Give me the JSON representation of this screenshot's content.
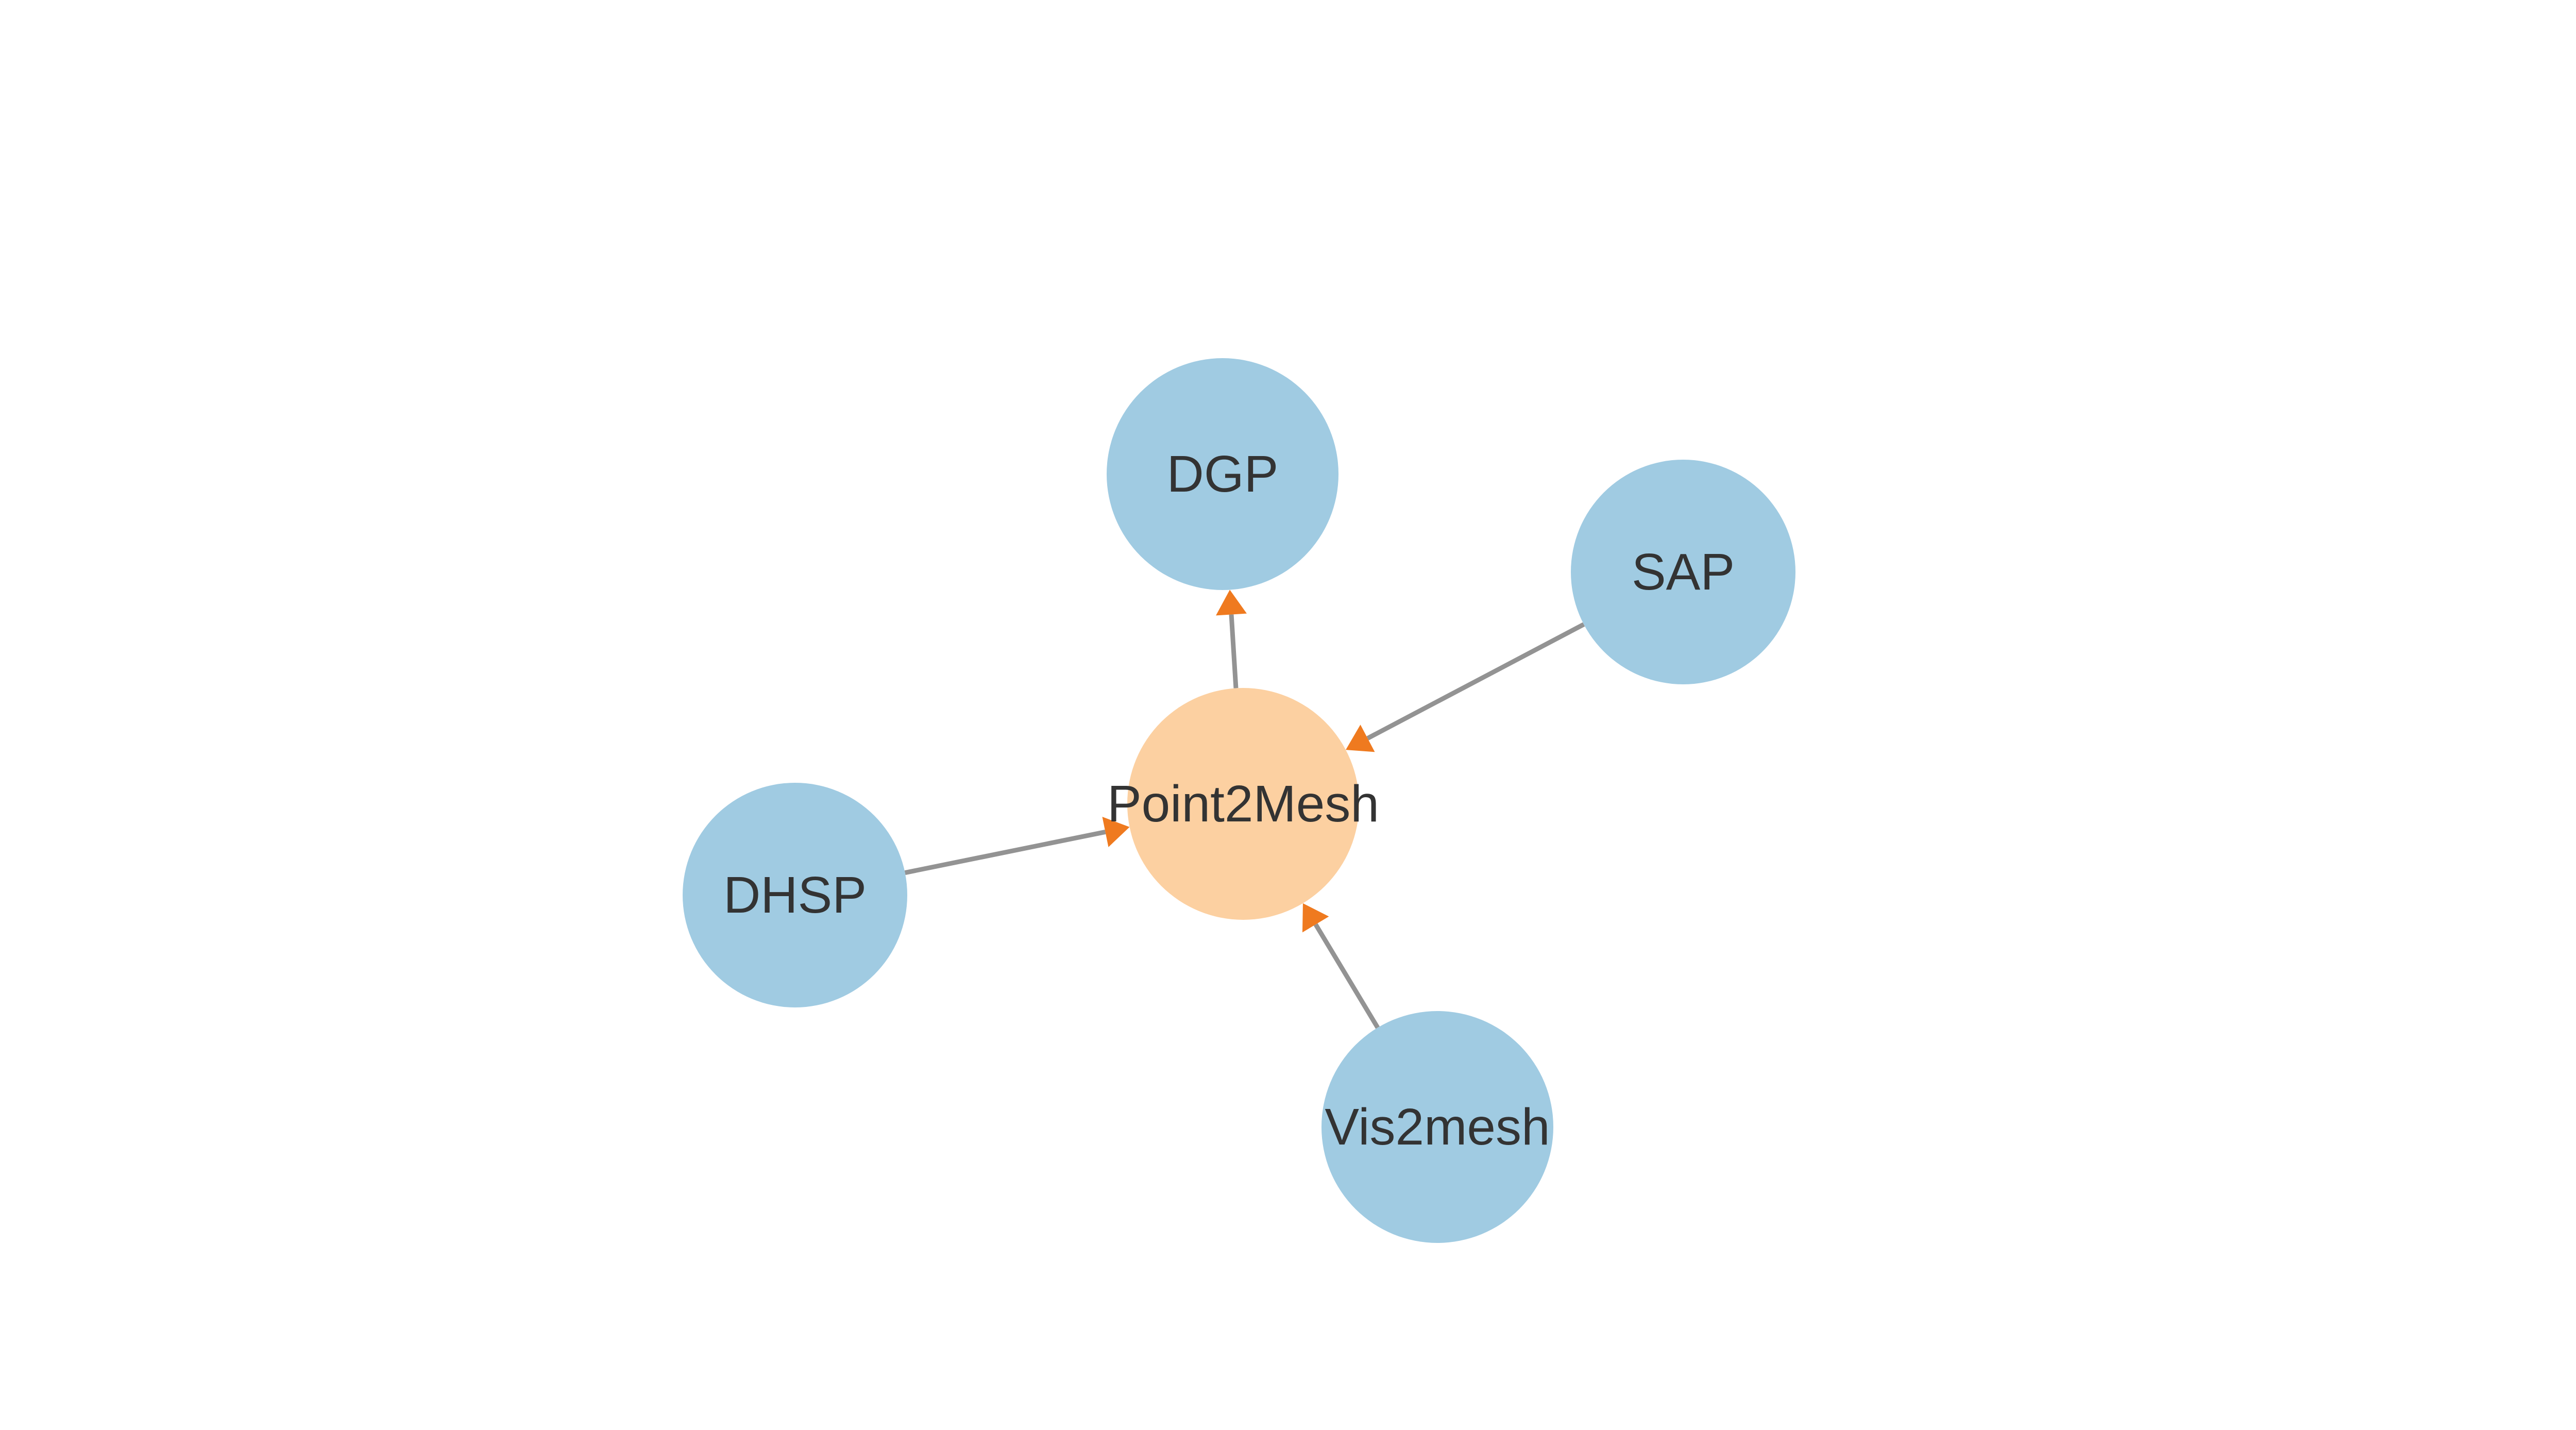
{
  "diagram": {
    "type": "directed-graph",
    "colors": {
      "background": "#ffffff",
      "central_node": "#fcd0a1",
      "peripheral_node": "#a0cbe2",
      "edge": "#939393",
      "arrowhead": "#ef7a1f",
      "label": "#333333"
    },
    "nodes": [
      {
        "id": "dgp",
        "label": "DGP",
        "role": "peripheral"
      },
      {
        "id": "sap",
        "label": "SAP",
        "role": "peripheral"
      },
      {
        "id": "point2mesh",
        "label": "Point2Mesh",
        "role": "central"
      },
      {
        "id": "dhsp",
        "label": "DHSP",
        "role": "peripheral"
      },
      {
        "id": "vis2mesh",
        "label": "Vis2mesh",
        "role": "peripheral"
      }
    ],
    "edges": [
      {
        "from": "point2mesh",
        "to": "dgp"
      },
      {
        "from": "sap",
        "to": "point2mesh"
      },
      {
        "from": "dhsp",
        "to": "point2mesh"
      },
      {
        "from": "vis2mesh",
        "to": "point2mesh"
      }
    ]
  }
}
